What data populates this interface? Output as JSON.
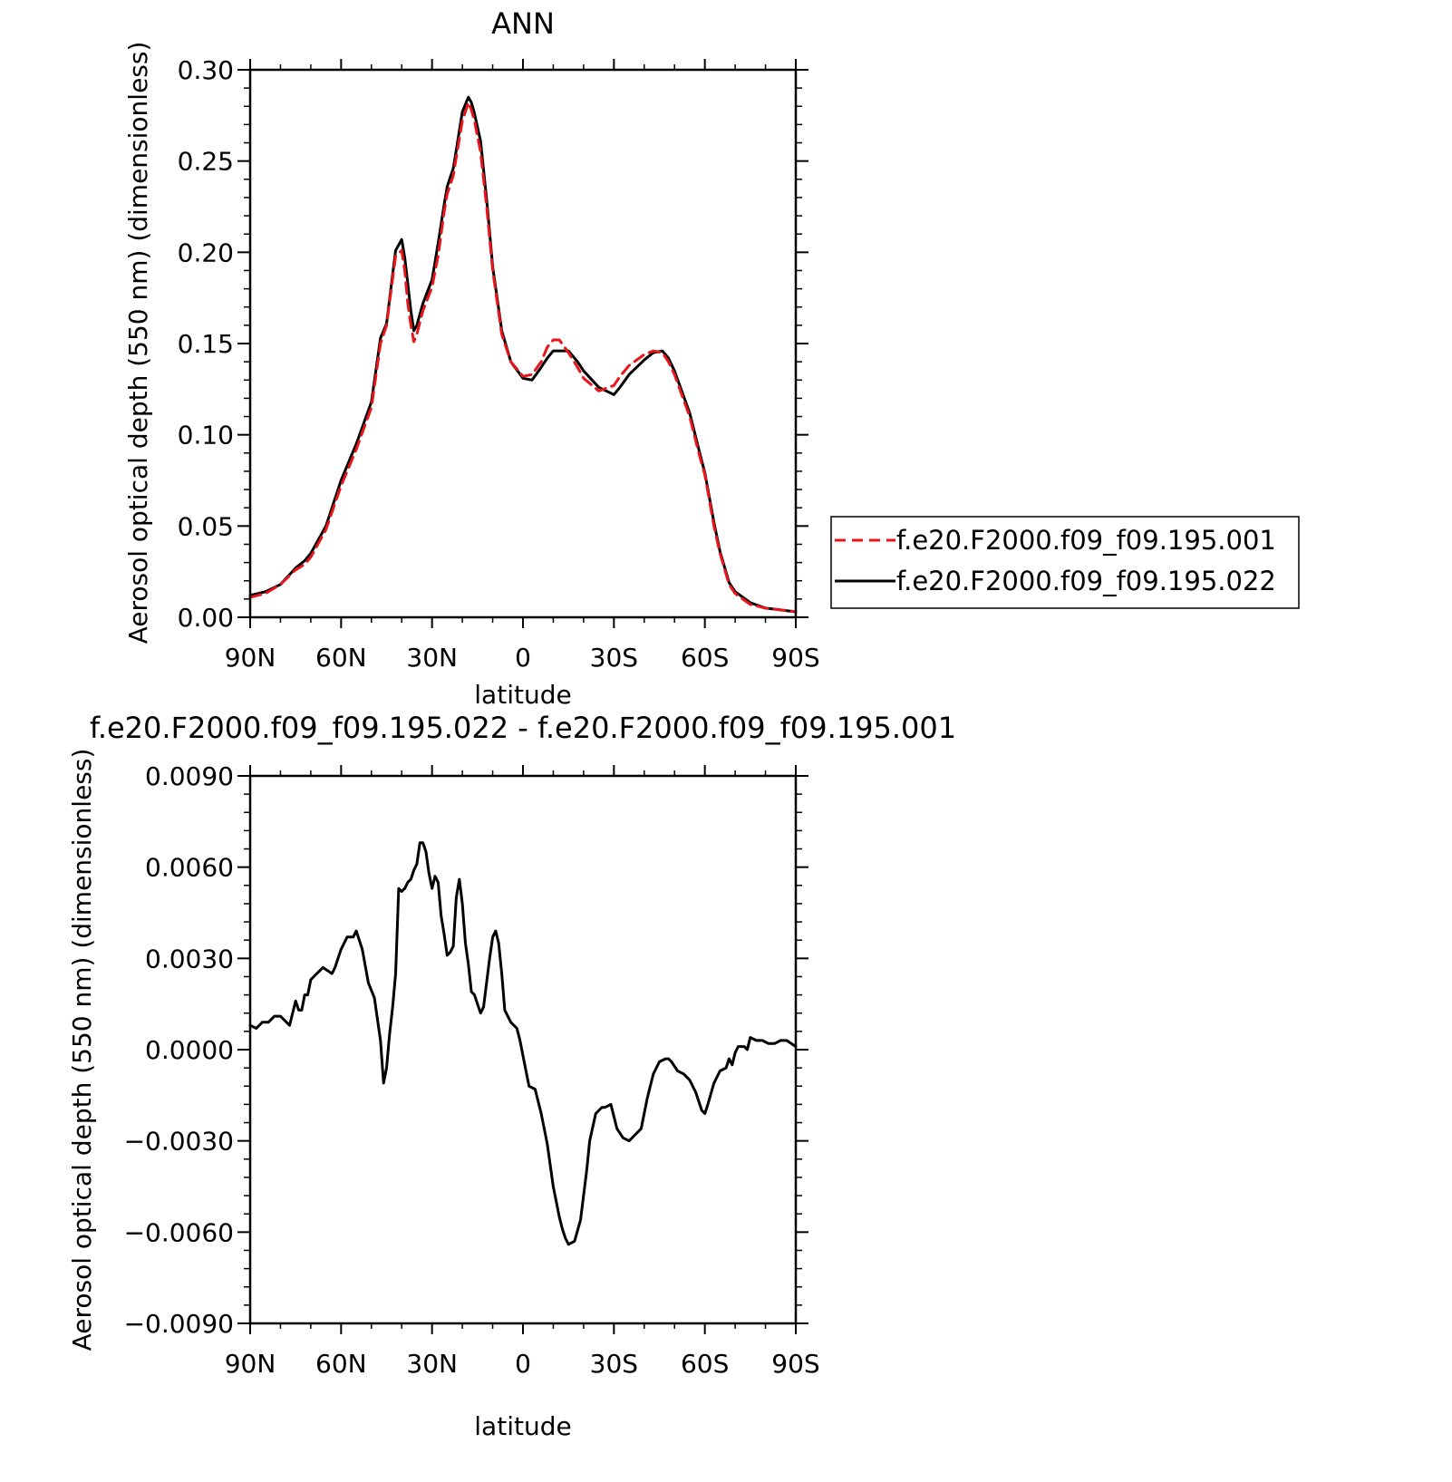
{
  "chart_data": [
    {
      "type": "line",
      "title": "ANN",
      "xlabel": "latitude",
      "ylabel": "Aerosol optical depth (550 nm) (dimensionless)",
      "xlim": [
        90,
        -90
      ],
      "ylim": [
        0,
        0.3
      ],
      "x_ticks": [
        {
          "value": 90,
          "label": "90N"
        },
        {
          "value": 60,
          "label": "60N"
        },
        {
          "value": 30,
          "label": "30N"
        },
        {
          "value": 0,
          "label": "0"
        },
        {
          "value": -30,
          "label": "30S"
        },
        {
          "value": -60,
          "label": "60S"
        },
        {
          "value": -90,
          "label": "90S"
        }
      ],
      "y_ticks": [
        "0.00",
        "0.05",
        "0.10",
        "0.15",
        "0.20",
        "0.25",
        "0.30"
      ],
      "y_tick_values": [
        0,
        0.05,
        0.1,
        0.15,
        0.2,
        0.25,
        0.3
      ],
      "grid": false,
      "legend_position": "right",
      "series": [
        {
          "name": "f.e20.F2000.f09_f09.195.001",
          "color": "#e8151b",
          "dash": "dashed",
          "x": [
            90,
            85,
            80,
            75,
            72,
            70,
            65,
            60,
            55,
            50,
            47,
            45,
            42,
            40,
            39,
            38,
            37,
            36,
            35,
            33,
            30,
            28,
            26,
            25,
            23,
            22,
            20,
            18,
            17,
            16,
            14,
            12,
            10,
            7,
            4,
            0,
            -3,
            -6,
            -8,
            -10,
            -12,
            -15,
            -18,
            -20,
            -25,
            -30,
            -32,
            -35,
            -40,
            -43,
            -46,
            -48,
            -50,
            -55,
            -58,
            -60,
            -63,
            -65,
            -68,
            -70,
            -75,
            -80,
            -85,
            -90
          ],
          "values": [
            0.011,
            0.013,
            0.018,
            0.026,
            0.029,
            0.033,
            0.048,
            0.072,
            0.092,
            0.115,
            0.15,
            0.16,
            0.198,
            0.201,
            0.19,
            0.172,
            0.16,
            0.151,
            0.155,
            0.168,
            0.181,
            0.198,
            0.222,
            0.232,
            0.242,
            0.252,
            0.272,
            0.282,
            0.278,
            0.272,
            0.255,
            0.225,
            0.19,
            0.155,
            0.14,
            0.132,
            0.133,
            0.14,
            0.148,
            0.152,
            0.152,
            0.145,
            0.137,
            0.131,
            0.124,
            0.127,
            0.132,
            0.138,
            0.144,
            0.146,
            0.145,
            0.14,
            0.133,
            0.11,
            0.09,
            0.078,
            0.05,
            0.035,
            0.018,
            0.013,
            0.007,
            0.005,
            0.004,
            0.003
          ]
        },
        {
          "name": "f.e20.F2000.f09_f09.195.022",
          "color": "#000000",
          "dash": "solid",
          "x": [
            90,
            85,
            80,
            75,
            72,
            70,
            65,
            60,
            55,
            50,
            47,
            45,
            42,
            40,
            39,
            38,
            37,
            36,
            35,
            33,
            30,
            28,
            26,
            25,
            23,
            22,
            20,
            18,
            17,
            16,
            14,
            12,
            10,
            7,
            4,
            0,
            -3,
            -6,
            -8,
            -10,
            -12,
            -15,
            -18,
            -20,
            -25,
            -30,
            -32,
            -35,
            -40,
            -43,
            -46,
            -48,
            -50,
            -55,
            -58,
            -60,
            -63,
            -65,
            -68,
            -70,
            -75,
            -80,
            -85,
            -90
          ],
          "values": [
            0.012,
            0.014,
            0.018,
            0.027,
            0.031,
            0.035,
            0.05,
            0.075,
            0.095,
            0.118,
            0.153,
            0.161,
            0.201,
            0.207,
            0.197,
            0.183,
            0.168,
            0.157,
            0.16,
            0.172,
            0.185,
            0.205,
            0.226,
            0.236,
            0.246,
            0.256,
            0.277,
            0.285,
            0.282,
            0.276,
            0.261,
            0.229,
            0.192,
            0.157,
            0.14,
            0.131,
            0.13,
            0.137,
            0.142,
            0.146,
            0.146,
            0.146,
            0.14,
            0.135,
            0.126,
            0.122,
            0.126,
            0.133,
            0.141,
            0.145,
            0.146,
            0.142,
            0.135,
            0.112,
            0.092,
            0.079,
            0.052,
            0.036,
            0.019,
            0.014,
            0.008,
            0.005,
            0.004,
            0.003
          ]
        }
      ]
    },
    {
      "type": "line",
      "title": "f.e20.F2000.f09_f09.195.022 - f.e20.F2000.f09_f09.195.001",
      "xlabel": "latitude",
      "ylabel": "Aerosol optical depth (550 nm) (dimensionless)",
      "xlim": [
        90,
        -90
      ],
      "ylim": [
        -0.009,
        0.009
      ],
      "x_ticks": [
        {
          "value": 90,
          "label": "90N"
        },
        {
          "value": 60,
          "label": "60N"
        },
        {
          "value": 30,
          "label": "30N"
        },
        {
          "value": 0,
          "label": "0"
        },
        {
          "value": -30,
          "label": "30S"
        },
        {
          "value": -60,
          "label": "60S"
        },
        {
          "value": -90,
          "label": "90S"
        }
      ],
      "y_ticks": [
        "−0.0090",
        "−0.0060",
        "−0.0030",
        "0.0000",
        "0.0030",
        "0.0060",
        "0.0090"
      ],
      "y_tick_values": [
        -0.009,
        -0.006,
        -0.003,
        0.0,
        0.003,
        0.006,
        0.009
      ],
      "grid": false,
      "series": [
        {
          "color": "#000000",
          "dash": "solid",
          "x": [
            90,
            88,
            86,
            84,
            82,
            80,
            77,
            75,
            74,
            73,
            72,
            71,
            70,
            68,
            66,
            63,
            62,
            60,
            58,
            56,
            55,
            53,
            51,
            49,
            47,
            46,
            45,
            44,
            43,
            42,
            41,
            40,
            39,
            38,
            37,
            36,
            35,
            34,
            33,
            32,
            31,
            30,
            29,
            28,
            27,
            26,
            25,
            24,
            23,
            22,
            21,
            20,
            19,
            18,
            17,
            16,
            15,
            14,
            13,
            11,
            10,
            9,
            8,
            7,
            6,
            4,
            2,
            1,
            0,
            -2,
            -4,
            -6,
            -8,
            -10,
            -12,
            -13,
            -14,
            -15,
            -17,
            -19,
            -21,
            -22,
            -24,
            -26,
            -27,
            -29,
            -31,
            -33,
            -35,
            -37,
            -39,
            -41,
            -43,
            -45,
            -47,
            -48,
            -49,
            -51,
            -53,
            -55,
            -57,
            -59,
            -60,
            -61,
            -63,
            -65,
            -67,
            -68,
            -69,
            -70,
            -71,
            -72,
            -73,
            -74,
            -75,
            -77,
            -79,
            -81,
            -83,
            -85,
            -87,
            -90
          ],
          "values": [
            0.0008,
            0.0007,
            0.0009,
            0.0009,
            0.0011,
            0.0011,
            0.0008,
            0.0016,
            0.0013,
            0.0013,
            0.0018,
            0.0018,
            0.0023,
            0.0025,
            0.0027,
            0.0025,
            0.0027,
            0.0033,
            0.0037,
            0.0037,
            0.0039,
            0.0033,
            0.0022,
            0.0017,
            0.0003,
            -0.0011,
            -0.0006,
            0.0005,
            0.0014,
            0.0025,
            0.0053,
            0.0052,
            0.0053,
            0.0055,
            0.0056,
            0.0059,
            0.0061,
            0.0068,
            0.0068,
            0.0065,
            0.0058,
            0.0053,
            0.0057,
            0.0055,
            0.0044,
            0.0038,
            0.0031,
            0.0032,
            0.0034,
            0.005,
            0.0056,
            0.0048,
            0.0035,
            0.0028,
            0.0019,
            0.0018,
            0.0015,
            0.0012,
            0.0014,
            0.003,
            0.0037,
            0.0039,
            0.0035,
            0.0025,
            0.0013,
            0.0009,
            0.0007,
            0.0003,
            -0.0002,
            -0.0012,
            -0.0013,
            -0.0021,
            -0.0031,
            -0.0045,
            -0.0055,
            -0.0059,
            -0.0062,
            -0.0064,
            -0.0063,
            -0.0056,
            -0.004,
            -0.003,
            -0.0021,
            -0.0019,
            -0.0019,
            -0.0018,
            -0.0026,
            -0.0029,
            -0.003,
            -0.0028,
            -0.0026,
            -0.0016,
            -0.0008,
            -0.0004,
            -0.0003,
            -0.0003,
            -0.0004,
            -0.0007,
            -0.0008,
            -0.001,
            -0.0014,
            -0.002,
            -0.0021,
            -0.0018,
            -0.0011,
            -0.0007,
            -0.0006,
            -0.0003,
            -0.0005,
            -0.0001,
            0.0001,
            0.0001,
            0.0001,
            0.0,
            0.0004,
            0.0003,
            0.0003,
            0.0002,
            0.0002,
            0.0003,
            0.0003,
            0.0001
          ]
        }
      ]
    }
  ]
}
